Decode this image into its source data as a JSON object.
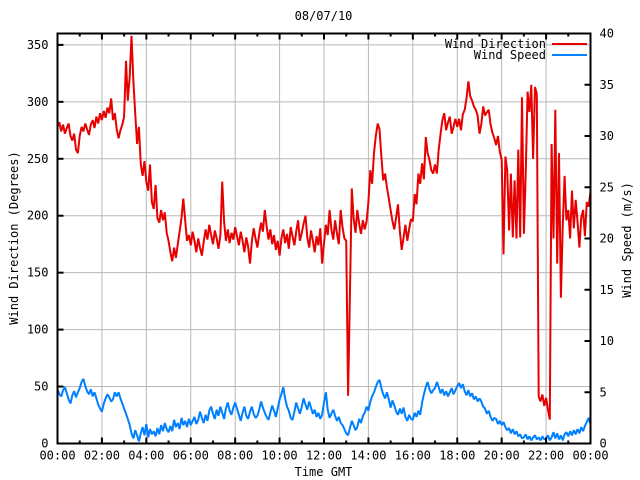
{
  "chart_data": {
    "type": "line",
    "title": "08/07/10",
    "xlabel": "Time GMT",
    "ylabel": "Wind Direction (Degrees)",
    "y2label": "Wind Speed (m/s)",
    "legend_position": "top-right-inside",
    "grid": true,
    "grid_color": "#b8b8b8",
    "background_color": "#ffffff",
    "border_color": "#000000",
    "x_axis": {
      "tick_labels": [
        "00:00",
        "02:00",
        "04:00",
        "06:00",
        "08:00",
        "10:00",
        "12:00",
        "14:00",
        "16:00",
        "18:00",
        "20:00",
        "22:00",
        "00:00"
      ],
      "tick_hours": [
        0,
        2,
        4,
        6,
        8,
        10,
        12,
        14,
        16,
        18,
        20,
        22,
        24
      ],
      "minor_tick_hours": [
        1,
        3,
        5,
        7,
        9,
        11,
        13,
        15,
        17,
        19,
        21,
        23
      ],
      "range_hours": [
        0,
        24
      ]
    },
    "y_left_axis": {
      "ticks": [
        0,
        50,
        100,
        150,
        200,
        250,
        300,
        350
      ],
      "range": [
        0,
        360
      ]
    },
    "y_right_axis": {
      "ticks": [
        0,
        5,
        10,
        15,
        20,
        25,
        30,
        35,
        40
      ],
      "range": [
        0,
        40
      ]
    },
    "sample_interval_minutes": 5,
    "series": [
      {
        "name": "Wind Direction",
        "axis": "left",
        "color": "#e80000",
        "values": [
          278,
          282,
          274,
          280,
          272,
          277,
          281,
          270,
          266,
          272,
          258,
          255,
          270,
          278,
          274,
          281,
          276,
          271,
          280,
          284,
          277,
          287,
          281,
          290,
          284,
          292,
          286,
          295,
          290,
          303,
          284,
          290,
          276,
          268,
          275,
          280,
          287,
          336,
          301,
          322,
          358,
          318,
          290,
          263,
          278,
          245,
          235,
          248,
          230,
          222,
          245,
          212,
          206,
          227,
          198,
          194,
          205,
          196,
          203,
          185,
          178,
          168,
          160,
          172,
          163,
          175,
          186,
          198,
          215,
          196,
          178,
          183,
          174,
          186,
          178,
          168,
          180,
          172,
          165,
          177,
          188,
          179,
          192,
          183,
          175,
          187,
          180,
          171,
          183,
          230,
          195,
          178,
          188,
          176,
          185,
          179,
          190,
          182,
          174,
          186,
          178,
          168,
          181,
          173,
          158,
          177,
          189,
          180,
          172,
          184,
          194,
          186,
          205,
          191,
          179,
          188,
          175,
          183,
          170,
          178,
          165,
          180,
          188,
          176,
          184,
          171,
          190,
          182,
          174,
          186,
          196,
          178,
          185,
          193,
          200,
          181,
          172,
          187,
          178,
          168,
          182,
          174,
          189,
          158,
          176,
          192,
          183,
          205,
          188,
          179,
          196,
          184,
          175,
          205,
          190,
          180,
          178,
          42,
          130,
          224,
          198,
          185,
          205,
          193,
          184,
          196,
          188,
          195,
          212,
          240,
          228,
          255,
          270,
          281,
          276,
          252,
          231,
          237,
          225,
          215,
          205,
          195,
          188,
          199,
          210,
          186,
          170,
          181,
          192,
          178,
          188,
          197,
          195,
          219,
          210,
          237,
          228,
          246,
          232,
          269,
          255,
          249,
          240,
          237,
          245,
          237,
          258,
          272,
          284,
          290,
          275,
          282,
          287,
          272,
          278,
          285,
          278,
          285,
          275,
          289,
          293,
          303,
          318,
          305,
          301,
          296,
          293,
          288,
          272,
          280,
          296,
          288,
          291,
          293,
          280,
          273,
          268,
          262,
          270,
          256,
          249,
          166,
          252,
          240,
          187,
          237,
          181,
          231,
          180,
          258,
          181,
          304,
          184,
          237,
          309,
          291,
          315,
          250,
          313,
          307,
          41,
          37,
          43,
          33,
          40,
          30,
          21,
          263,
          180,
          293,
          158,
          255,
          128,
          190,
          235,
          196,
          205,
          180,
          222,
          189,
          214,
          195,
          172,
          198,
          205,
          182,
          212,
          208,
          221
        ]
      },
      {
        "name": "Wind Speed",
        "axis": "right",
        "color": "#0080ff",
        "values": [
          5.3,
          4.8,
          4.6,
          5.2,
          5.5,
          4.9,
          4.3,
          3.9,
          4.7,
          5.1,
          4.5,
          5.0,
          5.4,
          6.0,
          6.3,
          5.6,
          5.1,
          4.8,
          5.3,
          4.6,
          5.0,
          4.4,
          3.8,
          3.4,
          3.1,
          3.9,
          4.4,
          4.8,
          4.5,
          4.1,
          4.3,
          5.0,
          4.6,
          5.0,
          4.4,
          3.9,
          3.4,
          2.9,
          2.4,
          1.8,
          1.0,
          0.5,
          1.3,
          0.8,
          0.2,
          1.0,
          1.6,
          0.8,
          1.9,
          0.6,
          1.4,
          0.9,
          1.2,
          0.7,
          1.5,
          0.9,
          1.8,
          1.2,
          2.0,
          1.4,
          1.1,
          1.7,
          1.2,
          2.3,
          1.6,
          2.0,
          1.4,
          2.5,
          1.8,
          2.2,
          1.6,
          2.4,
          1.8,
          2.2,
          2.6,
          1.9,
          2.3,
          3.1,
          2.5,
          2.0,
          2.8,
          2.2,
          3.2,
          3.6,
          2.9,
          2.4,
          3.3,
          2.7,
          3.6,
          3.0,
          2.4,
          3.4,
          4.0,
          3.2,
          2.8,
          3.5,
          4.0,
          3.4,
          2.8,
          2.2,
          3.0,
          3.6,
          2.7,
          2.4,
          3.1,
          3.6,
          2.9,
          2.5,
          2.7,
          3.3,
          4.1,
          3.5,
          3.0,
          2.6,
          2.3,
          3.0,
          3.7,
          3.2,
          2.6,
          3.4,
          4.3,
          4.8,
          5.5,
          4.4,
          3.6,
          3.2,
          2.5,
          2.3,
          3.1,
          4.0,
          3.4,
          2.9,
          3.6,
          4.4,
          3.8,
          3.3,
          4.1,
          3.5,
          2.9,
          3.3,
          2.6,
          3.0,
          2.4,
          2.8,
          4.0,
          5.0,
          3.3,
          2.5,
          2.9,
          3.3,
          2.7,
          2.2,
          2.6,
          2.0,
          1.8,
          1.4,
          1.0,
          0.8,
          1.5,
          2.2,
          1.8,
          1.3,
          1.6,
          2.4,
          2.0,
          2.7,
          3.0,
          3.6,
          3.2,
          4.1,
          4.6,
          5.0,
          5.5,
          6.0,
          6.2,
          5.4,
          4.8,
          4.4,
          5.0,
          4.3,
          3.5,
          4.2,
          3.7,
          3.1,
          2.8,
          3.4,
          2.9,
          3.5,
          2.6,
          2.2,
          2.8,
          2.4,
          2.3,
          3.0,
          2.6,
          3.2,
          2.8,
          4.0,
          4.8,
          5.5,
          6.0,
          5.3,
          4.9,
          5.2,
          5.4,
          6.0,
          5.5,
          4.9,
          5.3,
          4.7,
          5.1,
          4.6,
          5.0,
          5.4,
          4.8,
          5.2,
          5.6,
          5.9,
          5.4,
          5.8,
          5.1,
          4.7,
          5.2,
          4.6,
          4.9,
          4.3,
          4.6,
          4.1,
          4.4,
          4.1,
          3.6,
          3.4,
          2.9,
          3.2,
          2.6,
          2.2,
          2.5,
          2.4,
          1.9,
          2.2,
          1.8,
          2.1,
          1.6,
          1.3,
          1.5,
          1.0,
          1.4,
          0.9,
          1.2,
          0.7,
          0.9,
          0.5,
          0.6,
          0.9,
          0.4,
          0.7,
          0.3,
          0.6,
          0.8,
          0.4,
          0.6,
          0.3,
          0.7,
          0.4,
          0.5,
          0.8,
          0.3,
          0.6,
          1.1,
          0.5,
          1.0,
          0.4,
          0.8,
          0.3,
          0.9,
          1.1,
          0.7,
          1.2,
          0.8,
          1.3,
          0.9,
          1.4,
          1.0,
          1.6,
          1.2,
          1.7,
          2.1,
          2.5,
          1.9
        ]
      }
    ]
  }
}
